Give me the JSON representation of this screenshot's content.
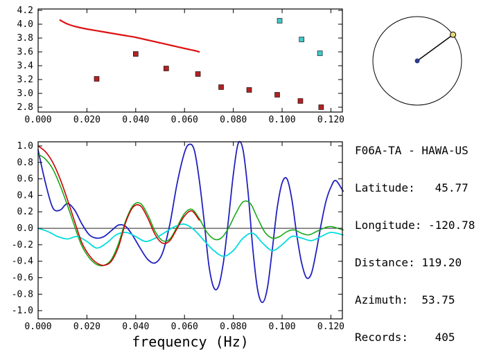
{
  "station": {
    "title": "F06A-TA - HAWA-US",
    "lines": [
      "Latitude:   45.77",
      "Longitude: -120.78",
      "Distance: 119.20",
      "Azimuth:  53.75",
      "Records:    405"
    ]
  },
  "azimuth_indicator": {
    "azimuth_deg": 53.75,
    "circle_color": "#000000",
    "line_color": "#000000",
    "center_dot_color": "#2a3a8c",
    "edge_dot_color": "#e6d87c"
  },
  "chart_data": [
    {
      "name": "dispersion-plot",
      "type": "line",
      "xlim": [
        0,
        0.1247
      ],
      "ylim": [
        2.73,
        4.22
      ],
      "xticks": {
        "values": [
          0,
          0.02,
          0.04,
          0.06,
          0.08,
          0.1,
          0.12
        ],
        "labels": [
          "0.000",
          "0.020",
          "0.040",
          "0.060",
          "0.080",
          "0.100",
          "0.120"
        ]
      },
      "yticks": {
        "values": [
          2.8,
          3.0,
          3.2,
          3.4,
          3.6,
          3.8,
          4.0,
          4.2
        ],
        "labels": [
          "2.8",
          "3.0",
          "3.2",
          "3.4",
          "3.6",
          "3.8",
          "4.0",
          "4.2"
        ]
      },
      "xlabel": "",
      "zero_line": false,
      "series": [
        {
          "name": "smooth-dispersion-curve",
          "kind": "line",
          "color": "#dd1111",
          "width": 2.2,
          "x": [
            0.009,
            0.011,
            0.013,
            0.016,
            0.02,
            0.025,
            0.03,
            0.035,
            0.04,
            0.045,
            0.05,
            0.055,
            0.06,
            0.064,
            0.066
          ],
          "y": [
            4.06,
            4.02,
            3.99,
            3.96,
            3.93,
            3.9,
            3.87,
            3.84,
            3.81,
            3.77,
            3.73,
            3.69,
            3.65,
            3.62,
            3.6
          ]
        },
        {
          "name": "red-square-markers",
          "kind": "scatter",
          "marker": "square",
          "color": "#b22222",
          "size": 7,
          "x": [
            0.024,
            0.04,
            0.0525,
            0.0655,
            0.075,
            0.0865,
            0.098,
            0.1075,
            0.116
          ],
          "y": [
            3.21,
            3.57,
            3.36,
            3.28,
            3.09,
            3.05,
            2.98,
            2.89,
            2.8
          ]
        },
        {
          "name": "cyan-square-markers",
          "kind": "scatter",
          "marker": "square",
          "color": "#40c8c8",
          "size": 7,
          "x": [
            0.099,
            0.108,
            0.1155
          ],
          "y": [
            4.05,
            3.78,
            3.58
          ]
        }
      ]
    },
    {
      "name": "spectral-correlation-plot",
      "type": "line",
      "xlim": [
        0,
        0.1247
      ],
      "ylim": [
        -1.1,
        1.05
      ],
      "xticks": {
        "values": [
          0,
          0.02,
          0.04,
          0.06,
          0.08,
          0.1,
          0.12
        ],
        "labels": [
          "0.000",
          "0.020",
          "0.040",
          "0.060",
          "0.080",
          "0.100",
          "0.120"
        ]
      },
      "yticks": {
        "values": [
          1.0,
          0.8,
          0.6,
          0.4,
          0.2,
          0.0,
          -0.2,
          -0.4,
          -0.6,
          -0.8,
          -1.0
        ],
        "labels": [
          "1.0",
          "0.8",
          "0.6",
          "0.4",
          "0.2",
          "0.0",
          "-0.2",
          "-0.4",
          "-0.6",
          "-0.8",
          "-1.0"
        ]
      },
      "xlabel": "frequency (Hz)",
      "zero_line": true,
      "series": [
        {
          "name": "blue-trace",
          "kind": "line",
          "color": "#2020c0",
          "width": 1.8,
          "x": [
            0,
            0.003,
            0.006,
            0.009,
            0.012,
            0.015,
            0.018,
            0.021,
            0.024,
            0.027,
            0.03,
            0.033,
            0.036,
            0.039,
            0.042,
            0.045,
            0.048,
            0.051,
            0.054,
            0.057,
            0.06,
            0.062,
            0.064,
            0.066,
            0.068,
            0.07,
            0.072,
            0.074,
            0.076,
            0.078,
            0.08,
            0.082,
            0.084,
            0.086,
            0.088,
            0.09,
            0.092,
            0.094,
            0.096,
            0.098,
            0.1,
            0.102,
            0.104,
            0.106,
            0.108,
            0.11,
            0.112,
            0.114,
            0.116,
            0.118,
            0.12,
            0.122,
            0.125
          ],
          "y": [
            0.95,
            0.55,
            0.25,
            0.22,
            0.3,
            0.22,
            0.05,
            -0.08,
            -0.12,
            -0.1,
            -0.03,
            0.04,
            0.02,
            -0.1,
            -0.25,
            -0.38,
            -0.42,
            -0.3,
            0.05,
            0.55,
            0.92,
            1.02,
            0.95,
            0.6,
            0.1,
            -0.45,
            -0.72,
            -0.7,
            -0.4,
            0.1,
            0.65,
            1.03,
            0.95,
            0.45,
            -0.25,
            -0.75,
            -0.9,
            -0.72,
            -0.25,
            0.25,
            0.55,
            0.6,
            0.35,
            -0.08,
            -0.42,
            -0.6,
            -0.55,
            -0.28,
            0.05,
            0.33,
            0.5,
            0.58,
            0.45
          ]
        },
        {
          "name": "green-trace",
          "kind": "line",
          "color": "#18a818",
          "width": 1.6,
          "x": [
            0,
            0.003,
            0.006,
            0.009,
            0.012,
            0.015,
            0.018,
            0.021,
            0.024,
            0.027,
            0.03,
            0.033,
            0.036,
            0.039,
            0.042,
            0.045,
            0.048,
            0.051,
            0.054,
            0.057,
            0.06,
            0.063,
            0.066,
            0.069,
            0.072,
            0.075,
            0.078,
            0.081,
            0.084,
            0.087,
            0.09,
            0.093,
            0.096,
            0.099,
            0.102,
            0.105,
            0.108,
            0.111,
            0.114,
            0.117,
            0.12,
            0.125
          ],
          "y": [
            0.9,
            0.84,
            0.72,
            0.52,
            0.28,
            0.02,
            -0.22,
            -0.36,
            -0.44,
            -0.45,
            -0.38,
            -0.18,
            0.1,
            0.28,
            0.3,
            0.16,
            -0.04,
            -0.15,
            -0.13,
            0.02,
            0.18,
            0.23,
            0.12,
            -0.04,
            -0.13,
            -0.12,
            0.0,
            0.18,
            0.32,
            0.3,
            0.12,
            -0.05,
            -0.12,
            -0.1,
            -0.04,
            -0.02,
            -0.06,
            -0.08,
            -0.04,
            0.0,
            0.02,
            -0.02
          ]
        },
        {
          "name": "cyan-trace",
          "kind": "line",
          "color": "#00dcdc",
          "width": 1.8,
          "x": [
            0,
            0.004,
            0.008,
            0.012,
            0.016,
            0.02,
            0.024,
            0.028,
            0.032,
            0.036,
            0.04,
            0.044,
            0.048,
            0.052,
            0.056,
            0.06,
            0.064,
            0.068,
            0.072,
            0.076,
            0.08,
            0.084,
            0.088,
            0.092,
            0.096,
            0.1,
            0.104,
            0.108,
            0.112,
            0.116,
            0.12,
            0.125
          ],
          "y": [
            0.0,
            -0.04,
            -0.1,
            -0.13,
            -0.1,
            -0.16,
            -0.24,
            -0.18,
            -0.08,
            -0.05,
            -0.1,
            -0.16,
            -0.12,
            -0.05,
            0.02,
            0.05,
            -0.02,
            -0.15,
            -0.27,
            -0.34,
            -0.27,
            -0.12,
            -0.06,
            -0.18,
            -0.27,
            -0.2,
            -0.1,
            -0.12,
            -0.15,
            -0.1,
            -0.05,
            -0.08
          ]
        },
        {
          "name": "red-trace",
          "kind": "line",
          "color": "#cc0000",
          "width": 1.6,
          "x": [
            0,
            0.003,
            0.006,
            0.009,
            0.012,
            0.015,
            0.018,
            0.021,
            0.024,
            0.027,
            0.03,
            0.033,
            0.036,
            0.039,
            0.042,
            0.045,
            0.048,
            0.051,
            0.054,
            0.057,
            0.06,
            0.063,
            0.066
          ],
          "y": [
            1.0,
            0.93,
            0.8,
            0.6,
            0.35,
            0.08,
            -0.18,
            -0.33,
            -0.42,
            -0.45,
            -0.4,
            -0.22,
            0.08,
            0.26,
            0.27,
            0.12,
            -0.08,
            -0.18,
            -0.15,
            0.0,
            0.15,
            0.21,
            0.1
          ]
        }
      ]
    }
  ]
}
